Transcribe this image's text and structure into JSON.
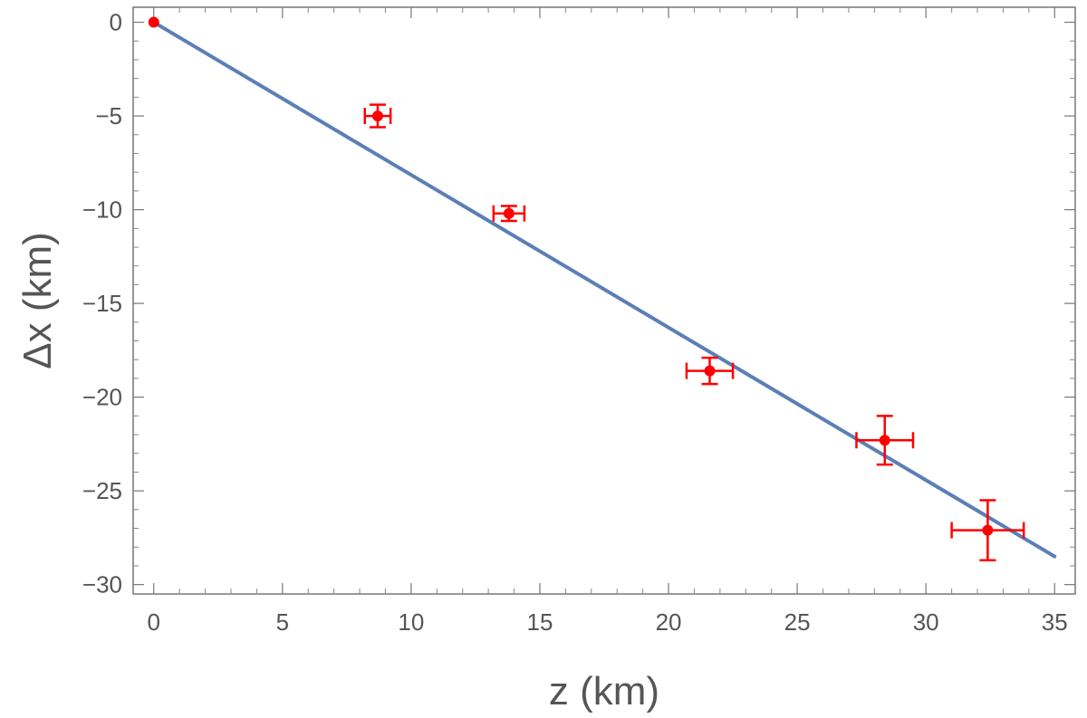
{
  "chart_data": {
    "type": "scatter",
    "title": "",
    "xlabel": "z (km)",
    "ylabel": "Δx (km)",
    "xlim": [
      -0.8,
      35.8
    ],
    "ylim": [
      -30.5,
      0.8
    ],
    "x_ticks": [
      0,
      5,
      10,
      15,
      20,
      25,
      30,
      35
    ],
    "x_tick_labels": [
      "0",
      "5",
      "10",
      "15",
      "20",
      "25",
      "30",
      "35"
    ],
    "y_ticks": [
      0,
      -5,
      -10,
      -15,
      -20,
      -25,
      -30
    ],
    "y_tick_labels": [
      "0",
      "−5",
      "−10",
      "−15",
      "−20",
      "−25",
      "−30"
    ],
    "grid": false,
    "series": [
      {
        "kind": "points-with-errorbars",
        "color": "#ff0000",
        "points": [
          {
            "x": 0,
            "y": 0,
            "xerr": 0,
            "yerr": 0
          },
          {
            "x": 8.7,
            "y": -5.0,
            "xerr": 0.5,
            "yerr": 0.6
          },
          {
            "x": 13.8,
            "y": -10.2,
            "xerr": 0.6,
            "yerr": 0.4
          },
          {
            "x": 21.6,
            "y": -18.6,
            "xerr": 0.9,
            "yerr": 0.7
          },
          {
            "x": 28.4,
            "y": -22.3,
            "xerr": 1.1,
            "yerr": 1.3
          },
          {
            "x": 32.4,
            "y": -27.1,
            "xerr": 1.4,
            "yerr": 1.6
          }
        ]
      },
      {
        "kind": "fit-line",
        "color": "#5b7fb6",
        "x": [
          0,
          35
        ],
        "y": [
          0,
          -28.5
        ]
      }
    ]
  }
}
